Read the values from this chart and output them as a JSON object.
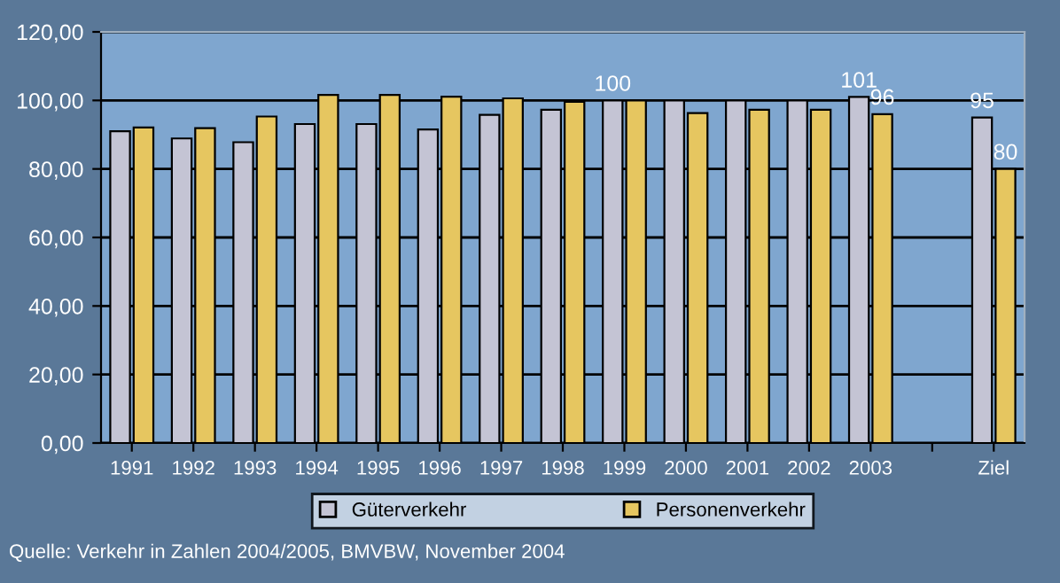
{
  "chart_data": {
    "type": "bar",
    "categories": [
      "1991",
      "1992",
      "1993",
      "1994",
      "1995",
      "1996",
      "1997",
      "1998",
      "1999",
      "2000",
      "2001",
      "2002",
      "2003",
      null,
      "Ziel"
    ],
    "series": [
      {
        "name": "Güterverkehr",
        "color": "#c4c4d4",
        "values": [
          91.0,
          88.9,
          87.8,
          93.1,
          93.1,
          91.5,
          95.8,
          97.3,
          100,
          100,
          100,
          100,
          101,
          null,
          95
        ],
        "value_labels": [
          null,
          null,
          null,
          null,
          null,
          null,
          null,
          null,
          "100",
          null,
          null,
          null,
          "101",
          null,
          "95"
        ]
      },
      {
        "name": "Personenverkehr",
        "color": "#e6c660",
        "values": [
          92.1,
          91.9,
          95.3,
          101.6,
          101.6,
          101.1,
          100.6,
          99.6,
          100,
          96.3,
          97.3,
          97.3,
          96,
          null,
          80
        ],
        "value_labels": [
          null,
          null,
          null,
          null,
          null,
          null,
          null,
          null,
          null,
          null,
          null,
          null,
          "96",
          null,
          "80"
        ]
      }
    ],
    "ylim": [
      0,
      120
    ],
    "yticks": [
      {
        "value": 0,
        "label": "0,00"
      },
      {
        "value": 20,
        "label": "20,00"
      },
      {
        "value": 40,
        "label": "40,00"
      },
      {
        "value": 60,
        "label": "60,00"
      },
      {
        "value": 80,
        "label": "80,00"
      },
      {
        "value": 100,
        "label": "100,00"
      },
      {
        "value": 120,
        "label": "120,00"
      }
    ],
    "grid": "y",
    "legend": "bottom",
    "annotations": [
      "Quelle: Verkehr in Zahlen 2004/2005, BMVBW, November 2004"
    ]
  }
}
